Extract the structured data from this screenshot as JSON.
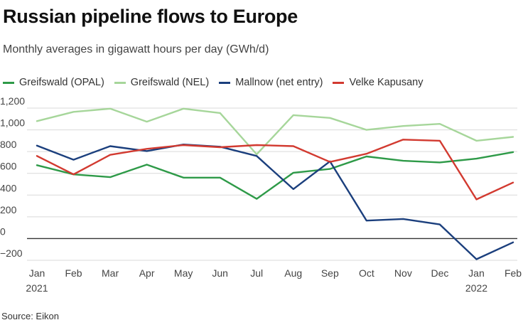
{
  "chart_data": {
    "type": "line",
    "title": "Russian pipeline flows to Europe",
    "subtitle": "Monthly averages in gigawatt hours per day (GWh/d)",
    "source": "Source: Eikon",
    "categories": [
      "Jan",
      "Feb",
      "Mar",
      "Apr",
      "May",
      "Jun",
      "Jul",
      "Aug",
      "Sep",
      "Oct",
      "Nov",
      "Dec",
      "Jan",
      "Feb"
    ],
    "year_labels": [
      "2021",
      "",
      "",
      "",
      "",
      "",
      "",
      "",
      "",
      "",
      "",
      "",
      "2022",
      ""
    ],
    "ylim": [
      -200,
      1200
    ],
    "yticks": [
      -200,
      0,
      200,
      400,
      600,
      800,
      1000,
      1200
    ],
    "ytick_labels": [
      "−200",
      "0",
      "200",
      "400",
      "600",
      "800",
      "1,000",
      "1,200"
    ],
    "grid": true,
    "legend_position": "top-left",
    "series": [
      {
        "name": "Greifswald (OPAL)",
        "color": "#2e9a48",
        "values": [
          675,
          590,
          565,
          680,
          560,
          560,
          365,
          605,
          640,
          755,
          715,
          700,
          735,
          795
        ]
      },
      {
        "name": "Greifswald (NEL)",
        "color": "#a6d69a",
        "values": [
          1080,
          1165,
          1195,
          1075,
          1195,
          1155,
          775,
          1135,
          1110,
          1000,
          1035,
          1055,
          900,
          935
        ]
      },
      {
        "name": "Mallnow (net entry)",
        "color": "#1b3f7d",
        "values": [
          855,
          725,
          850,
          805,
          865,
          845,
          760,
          455,
          710,
          165,
          180,
          130,
          -190,
          -35
        ]
      },
      {
        "name": "Velke Kapusany",
        "color": "#d23a30",
        "values": [
          760,
          590,
          770,
          825,
          860,
          840,
          860,
          850,
          705,
          780,
          910,
          900,
          360,
          515
        ]
      }
    ]
  }
}
